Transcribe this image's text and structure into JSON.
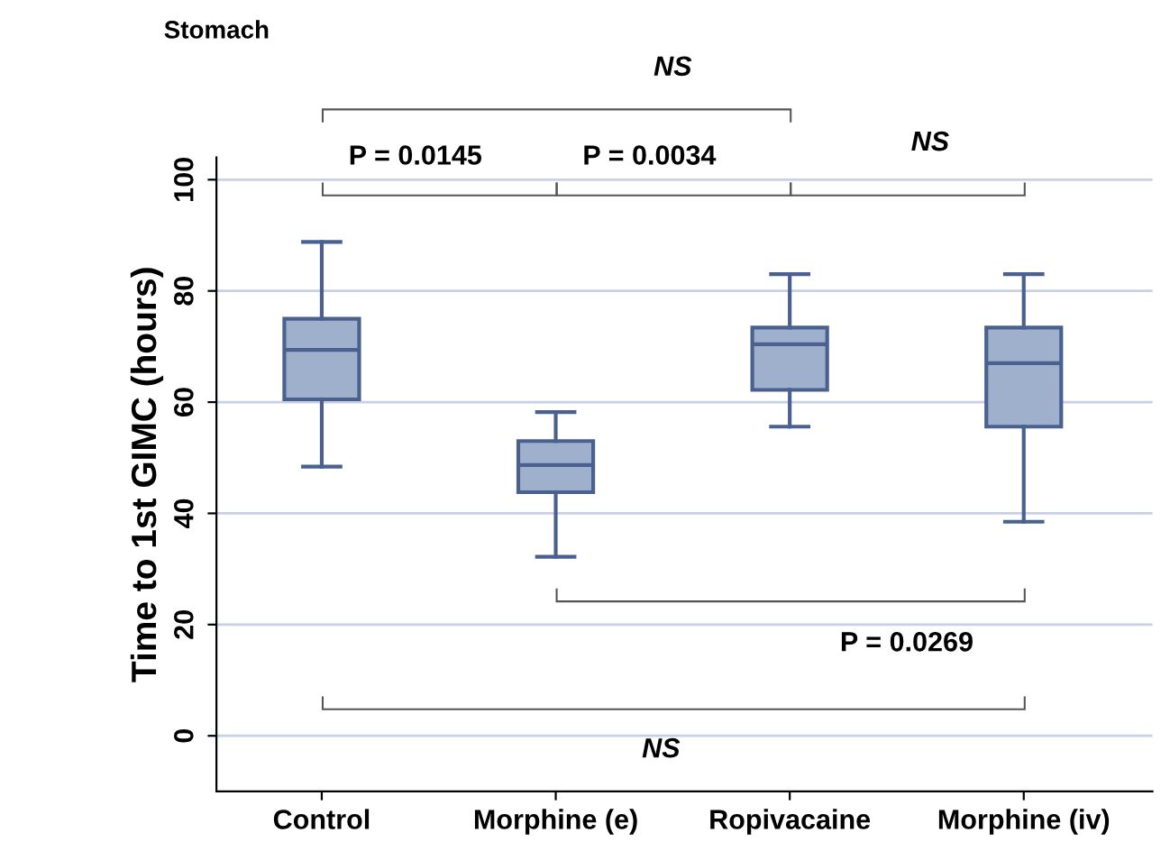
{
  "chart_data": {
    "type": "box",
    "title": "Stomach",
    "ylabel": "Time to 1st GIMC (hours)",
    "categories": [
      "Control",
      "Morphine (e)",
      "Ropivacaine",
      "Morphine (iv)"
    ],
    "boxes": [
      {
        "low": 48.4,
        "q1": 60.5,
        "median": 69.4,
        "q3": 75,
        "high": 88.8
      },
      {
        "low": 32.2,
        "q1": 43.8,
        "median": 48.7,
        "q3": 53,
        "high": 58.2
      },
      {
        "low": 55.6,
        "q1": 62.2,
        "median": 70.4,
        "q3": 73.4,
        "high": 83
      },
      {
        "low": 38.5,
        "q1": 55.6,
        "median": 67,
        "q3": 73.4,
        "high": 83
      }
    ],
    "color": "#9fb0cc",
    "ylim": [
      -10,
      104
    ],
    "yticks": [
      0,
      20,
      40,
      60,
      80,
      100
    ],
    "grid": "y",
    "annotations": [
      "NS",
      "P = 0.0145",
      "P = 0.0034",
      "NS",
      "P = 0.0269",
      "NS"
    ]
  }
}
